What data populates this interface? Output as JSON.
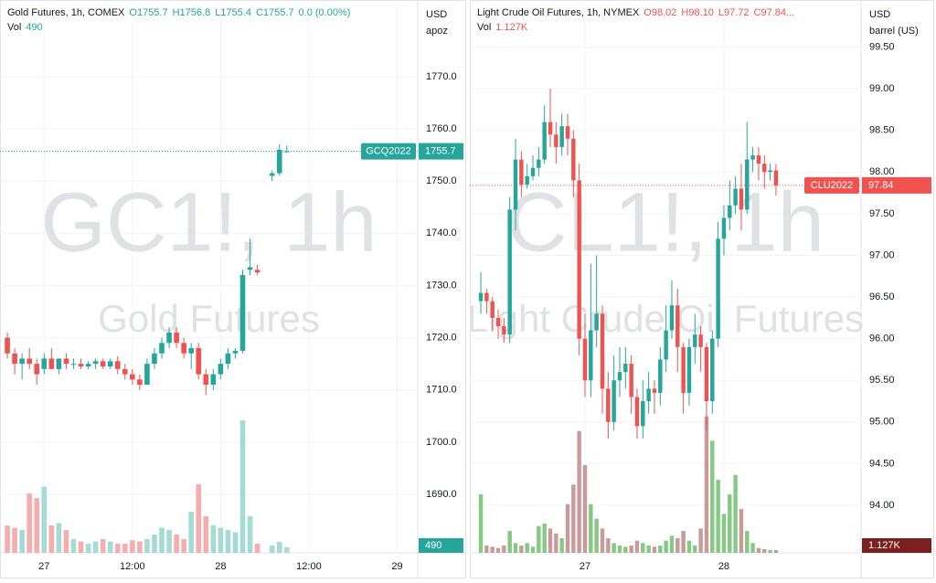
{
  "chart_data": [
    {
      "type": "candlestick",
      "title": "Gold Futures, 1h, COMEX",
      "ohlc_labels": [
        "O1755.7",
        "H1756.8",
        "L1755.4",
        "C1755.7",
        "0.0 (0.00%)"
      ],
      "volume_label": "Vol",
      "volume_value": "490",
      "symbol": "GC1!, 1h",
      "name": "Gold Futures",
      "contract": "GCQ2022",
      "last_price": 1755.7,
      "currency": "USD",
      "unit": "apoz",
      "up_color": "#26a69a",
      "down_color": "#ef5350",
      "volume_up_color": "#a5dbd3",
      "volume_down_color": "#f6adad",
      "volume_tag_color": "#26a69a",
      "grid": true,
      "x": [
        19,
        20,
        21,
        22,
        23,
        24,
        25,
        26,
        27,
        28,
        29,
        30,
        31,
        32,
        33,
        34,
        35,
        36,
        37,
        38,
        39,
        40,
        41,
        42,
        43,
        44,
        45,
        46,
        47,
        48,
        49,
        50,
        51,
        52,
        53,
        55,
        56,
        57
      ],
      "open": [
        1720,
        1717,
        1715,
        1716,
        1715,
        1714,
        1716,
        1714,
        1716,
        1715,
        1715,
        1714.5,
        1715,
        1715.5,
        1714.5,
        1715.5,
        1714,
        1713,
        1712,
        1711,
        1715,
        1717,
        1719,
        1721,
        1719,
        1717,
        1718,
        1713,
        1711,
        1713,
        1715,
        1717,
        1717.5,
        1733,
        1733,
        1751,
        1751.5,
        1755.7
      ],
      "high": [
        1721,
        1718,
        1717,
        1718,
        1716,
        1717,
        1718,
        1716,
        1717,
        1716,
        1716,
        1715.5,
        1716,
        1716,
        1716,
        1716.5,
        1715,
        1714,
        1713,
        1716,
        1718,
        1720,
        1722,
        1722,
        1720,
        1719,
        1719,
        1714,
        1714,
        1716,
        1718,
        1718,
        1733,
        1739,
        1734,
        1752,
        1757,
        1756.8
      ],
      "low": [
        1716,
        1713,
        1712,
        1714,
        1711,
        1713,
        1714,
        1713,
        1714,
        1714,
        1714,
        1714,
        1714,
        1714,
        1714,
        1713,
        1712,
        1711,
        1710,
        1711,
        1714,
        1716,
        1718,
        1718,
        1716,
        1714,
        1712,
        1709,
        1710,
        1712,
        1714,
        1716,
        1717,
        1732,
        1732,
        1750,
        1751,
        1755.4
      ],
      "close": [
        1717,
        1715,
        1716,
        1715,
        1713,
        1716,
        1714,
        1716,
        1715,
        1715,
        1714.5,
        1715,
        1715.5,
        1714.5,
        1715.5,
        1714,
        1713,
        1712,
        1711,
        1715,
        1717,
        1719,
        1721,
        1719,
        1717,
        1718,
        1713,
        1711,
        1713,
        1715,
        1717,
        1717.5,
        1732,
        1733.5,
        1732.5,
        1751.5,
        1756,
        1755.7
      ],
      "volumes": [
        2400,
        2200,
        2000,
        5200,
        4800,
        5800,
        2400,
        2600,
        2000,
        1200,
        1000,
        800,
        1000,
        1200,
        1000,
        800,
        800,
        1100,
        1000,
        1200,
        1600,
        2200,
        2000,
        1600,
        1200,
        3600,
        6000,
        3200,
        2400,
        2200,
        2000,
        1800,
        11600,
        3200,
        800,
        640,
        960,
        490
      ],
      "vlim": [
        0,
        16000
      ],
      "xlim": [
        18,
        74.8
      ],
      "xticks": [
        {
          "value": 24,
          "label": "27"
        },
        {
          "value": 36,
          "label": "12:00"
        },
        {
          "value": 48,
          "label": "28"
        },
        {
          "value": 60,
          "label": "12:00"
        },
        {
          "value": 72,
          "label": "29"
        }
      ],
      "ylim": [
        1678.8,
        1783.8
      ],
      "yticks": [
        {
          "value": 1690,
          "label": "1690.0"
        },
        {
          "value": 1700,
          "label": "1700.0"
        },
        {
          "value": 1710,
          "label": "1710.0"
        },
        {
          "value": 1720,
          "label": "1720.0"
        },
        {
          "value": 1730,
          "label": "1730.0"
        },
        {
          "value": 1740,
          "label": "1740.0"
        },
        {
          "value": 1750,
          "label": "1750.0"
        },
        {
          "value": 1760,
          "label": "1760.0"
        },
        {
          "value": 1770,
          "label": "1770.0"
        }
      ]
    },
    {
      "type": "candlestick",
      "title": "Light Crude Oil Futures, 1h, NYMEX",
      "ohlc_labels": [
        "O98.02",
        "H98.10",
        "L97.72",
        "C97.84..."
      ],
      "volume_label": "Vol",
      "volume_value": "1.127K",
      "symbol": "CL1!, 1h",
      "name": "Light Crude Oil Futures",
      "contract": "CLU2022",
      "last_price": 97.84,
      "currency": "USD",
      "unit": "barrel (US)",
      "up_color": "#26a69a",
      "down_color": "#ef5350",
      "volume_up_color": "#85c985",
      "volume_down_color": "#c99a9a",
      "volume_tag_color": "#7b1f1f",
      "grid": true,
      "x": [
        6,
        7,
        8,
        9,
        10,
        11,
        12,
        13,
        14,
        15,
        16,
        17,
        18,
        19,
        20,
        21,
        22,
        23,
        24,
        25,
        26,
        27,
        28,
        29,
        30,
        31,
        32,
        33,
        34,
        35,
        36,
        37,
        38,
        39,
        40,
        41,
        42,
        43,
        44,
        45,
        46,
        47,
        48,
        49,
        50,
        51,
        52,
        53,
        54,
        55,
        56,
        57
      ],
      "open": [
        96.45,
        96.55,
        96.45,
        96.25,
        96.15,
        96.05,
        97.55,
        98.15,
        97.85,
        97.95,
        98.05,
        98.15,
        98.6,
        98.45,
        98.3,
        98.55,
        98.4,
        97.9,
        96.0,
        95.5,
        96.1,
        96.3,
        95.4,
        95.0,
        95.5,
        95.6,
        95.7,
        95.3,
        94.95,
        95.25,
        95.4,
        95.35,
        95.75,
        96.1,
        96.4,
        95.9,
        95.35,
        95.9,
        96.05,
        95.9,
        95.25,
        96.0,
        97.2,
        97.45,
        97.6,
        97.8,
        97.55,
        98.15,
        98.2,
        98.1,
        98.0,
        98.02
      ],
      "high": [
        96.8,
        96.6,
        96.5,
        96.35,
        96.25,
        97.7,
        98.4,
        98.25,
        98.1,
        98.2,
        98.3,
        98.8,
        99.0,
        98.6,
        98.7,
        98.7,
        98.5,
        98.1,
        96.3,
        96.9,
        97.0,
        96.4,
        95.6,
        95.8,
        95.9,
        95.9,
        95.8,
        95.4,
        95.5,
        95.6,
        95.5,
        95.9,
        96.4,
        96.7,
        96.6,
        95.95,
        96.0,
        96.3,
        96.15,
        95.95,
        96.1,
        97.4,
        97.6,
        97.9,
        97.95,
        98.1,
        98.6,
        98.3,
        98.3,
        98.2,
        98.1,
        98.1
      ],
      "low": [
        96.3,
        96.3,
        96.1,
        96.0,
        95.95,
        95.95,
        97.3,
        97.7,
        97.8,
        97.9,
        97.95,
        98.1,
        98.3,
        98.1,
        98.2,
        98.2,
        97.7,
        95.8,
        95.3,
        95.3,
        95.9,
        95.1,
        94.8,
        94.9,
        95.3,
        95.4,
        95.1,
        94.8,
        94.8,
        95.1,
        95.1,
        95.2,
        95.6,
        96.0,
        95.6,
        95.1,
        95.2,
        95.7,
        95.6,
        94.9,
        95.1,
        95.9,
        97.0,
        97.3,
        97.5,
        97.3,
        97.5,
        98.0,
        97.9,
        97.8,
        97.9,
        97.72
      ],
      "close": [
        96.55,
        96.45,
        96.25,
        96.15,
        96.05,
        97.55,
        98.15,
        97.85,
        97.95,
        98.05,
        98.15,
        98.6,
        98.45,
        98.3,
        98.55,
        98.4,
        97.9,
        96.0,
        95.5,
        96.1,
        96.3,
        95.4,
        95.0,
        95.5,
        95.6,
        95.7,
        95.3,
        94.95,
        95.25,
        95.4,
        95.35,
        95.75,
        96.1,
        96.4,
        95.9,
        95.35,
        95.9,
        96.05,
        95.9,
        95.25,
        96.0,
        97.2,
        97.45,
        97.6,
        97.8,
        97.55,
        98.15,
        98.2,
        98.1,
        98.0,
        98.02,
        97.84
      ],
      "volumes": [
        24000,
        3000,
        2500,
        2000,
        3000,
        9000,
        4000,
        3000,
        4000,
        2500,
        11000,
        12000,
        10000,
        8000,
        6000,
        20000,
        28000,
        50000,
        36000,
        20000,
        14000,
        10000,
        6000,
        4000,
        3000,
        2500,
        3000,
        5000,
        4000,
        3000,
        2500,
        3000,
        5000,
        7000,
        6000,
        9000,
        5000,
        3000,
        10000,
        56000,
        46000,
        30000,
        16000,
        24000,
        32000,
        18000,
        9000,
        4000,
        2000,
        1500,
        1200,
        1127
      ],
      "vlim": [
        0,
        75000
      ],
      "xlim": [
        4.1,
        71.7
      ],
      "xticks": [
        {
          "value": 24,
          "label": "27"
        },
        {
          "value": 48,
          "label": "28"
        }
      ],
      "ylim": [
        93.43,
        100.01
      ],
      "yticks": [
        {
          "value": 94,
          "label": "94.00"
        },
        {
          "value": 94.5,
          "label": "94.50"
        },
        {
          "value": 95,
          "label": "95.00"
        },
        {
          "value": 95.5,
          "label": "95.50"
        },
        {
          "value": 96,
          "label": "96.00"
        },
        {
          "value": 96.5,
          "label": "96.50"
        },
        {
          "value": 97,
          "label": "97.00"
        },
        {
          "value": 97.5,
          "label": "97.50"
        },
        {
          "value": 98,
          "label": "98.00"
        },
        {
          "value": 98.5,
          "label": "98.50"
        },
        {
          "value": 99,
          "label": "99.00"
        },
        {
          "value": 99.5,
          "label": "99.50"
        }
      ]
    }
  ]
}
